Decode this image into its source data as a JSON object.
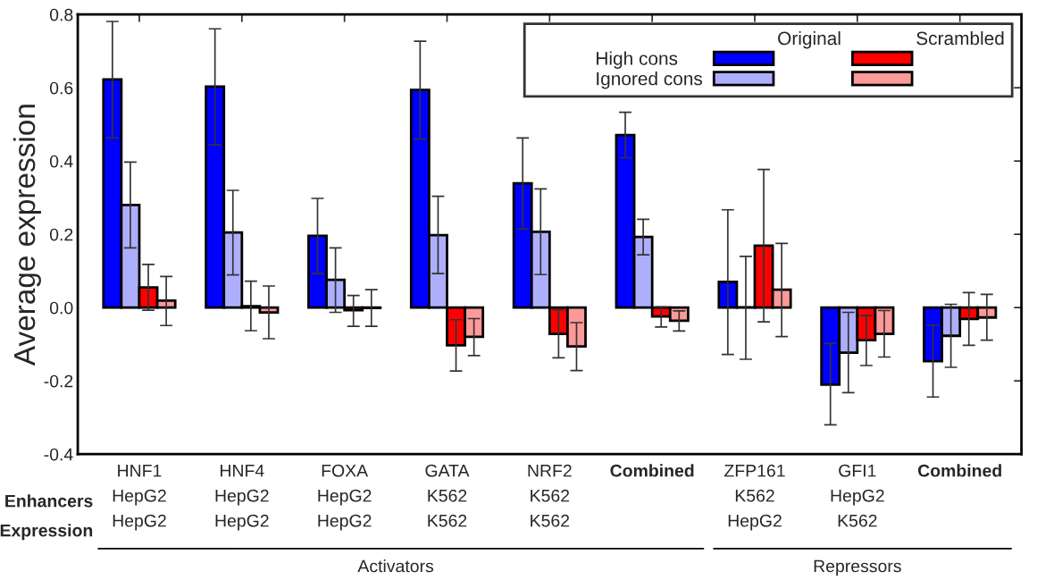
{
  "chart_data": {
    "type": "bar",
    "ylabel": "Average expression",
    "categories": [
      "HNF1\nHepG2\nHepG2",
      "HNF4\nHepG2\nHepG2",
      "FOXA\nHepG2\nHepG2",
      "GATA\nK562\nK562",
      "NRF2\nK562\nK562",
      "Combined",
      "ZFP161\nK562\nHepG2",
      "GFI1\nHepG2\nK562",
      "Combined"
    ],
    "series": [
      {
        "name": "High cons",
        "color": "#0000ff",
        "values": [
          0.623,
          0.603,
          0.196,
          0.594,
          0.339,
          0.471,
          0.07,
          -0.21,
          -0.146
        ],
        "errors": [
          [
            0.463,
            0.781
          ],
          [
            0.444,
            0.761
          ],
          [
            0.093,
            0.298
          ],
          [
            0.46,
            0.727
          ],
          [
            0.215,
            0.463
          ],
          [
            0.409,
            0.533
          ],
          [
            -0.128,
            0.267
          ],
          [
            -0.32,
            -0.098
          ],
          [
            -0.244,
            -0.048
          ]
        ]
      },
      {
        "name": "Ignored cons",
        "color": "#aeaffc",
        "values": [
          0.28,
          0.205,
          0.076,
          0.198,
          0.207,
          0.193,
          0.001,
          -0.123,
          -0.077
        ],
        "errors": [
          [
            0.163,
            0.397
          ],
          [
            0.089,
            0.32
          ],
          [
            -0.013,
            0.163
          ],
          [
            0.093,
            0.304
          ],
          [
            0.09,
            0.324
          ],
          [
            0.144,
            0.241
          ],
          [
            -0.141,
            0.14
          ],
          [
            -0.232,
            -0.013
          ],
          [
            -0.163,
            0.009
          ]
        ]
      },
      {
        "color": "#ff0000",
        "values": [
          0.055,
          0.004,
          -0.007,
          -0.103,
          -0.072,
          -0.024,
          0.169,
          -0.089,
          -0.031
        ],
        "errors": [
          [
            -0.007,
            0.118
          ],
          [
            -0.063,
            0.072
          ],
          [
            -0.051,
            0.033
          ],
          [
            -0.173,
            -0.033
          ],
          [
            -0.137,
            -0.006
          ],
          [
            -0.053,
            0.002
          ],
          [
            -0.039,
            0.377
          ],
          [
            -0.158,
            -0.022
          ],
          [
            -0.103,
            0.041
          ]
        ]
      },
      {
        "color": "#fe9999",
        "values": [
          0.019,
          -0.013,
          -0.001,
          -0.08,
          -0.106,
          -0.036,
          0.049,
          -0.072,
          -0.027
        ],
        "errors": [
          [
            -0.049,
            0.085
          ],
          [
            -0.085,
            0.059
          ],
          [
            -0.051,
            0.049
          ],
          [
            -0.131,
            -0.03
          ],
          [
            -0.172,
            -0.041
          ],
          [
            -0.064,
            -0.009
          ],
          [
            -0.079,
            0.175
          ],
          [
            -0.135,
            -0.008
          ],
          [
            -0.089,
            0.036
          ]
        ]
      }
    ],
    "ylim": [
      -0.4,
      0.8
    ],
    "yticks": [
      -0.4,
      -0.2,
      {
        "value": 0,
        "label": "0.0"
      },
      0.2,
      0.4,
      0.6,
      0.8
    ],
    "legend": "top right",
    "grid": false,
    "annotations": [
      "Original",
      "Scrambled",
      "Enhancers",
      "Expression",
      "Activators",
      "Repressors"
    ]
  }
}
